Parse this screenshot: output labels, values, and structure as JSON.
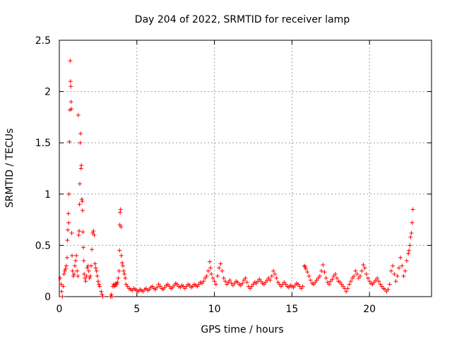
{
  "chart_data": {
    "type": "scatter",
    "title": "Day 204 of 2022, SRMTID for receiver lamp",
    "xlabel": "GPS time / hours",
    "ylabel": "SRMTID / TECUs",
    "xlim": [
      0,
      24
    ],
    "ylim": [
      0,
      2.5
    ],
    "xticks": [
      0,
      5,
      10,
      15,
      20
    ],
    "yticks": [
      0,
      0.5,
      1,
      1.5,
      2,
      2.5
    ],
    "xtick_labels": [
      "0",
      "5",
      "10",
      "15",
      "20"
    ],
    "ytick_labels": [
      "0",
      "0.5",
      "1",
      "1.5",
      "2",
      "2.5"
    ],
    "grid": true,
    "marker": "+",
    "color": "#ff0000",
    "series": [
      {
        "name": "SRMTID",
        "points": [
          [
            0.05,
            0.18
          ],
          [
            0.12,
            0.12
          ],
          [
            0.15,
            0.05
          ],
          [
            0.2,
            0.0
          ],
          [
            0.25,
            0.1
          ],
          [
            0.3,
            0.22
          ],
          [
            0.35,
            0.25
          ],
          [
            0.4,
            0.27
          ],
          [
            0.45,
            0.3
          ],
          [
            0.5,
            0.38
          ],
          [
            0.52,
            0.55
          ],
          [
            0.55,
            0.65
          ],
          [
            0.58,
            0.81
          ],
          [
            0.6,
            0.72
          ],
          [
            0.62,
            1.0
          ],
          [
            0.65,
            1.51
          ],
          [
            0.68,
            1.82
          ],
          [
            0.7,
            2.3
          ],
          [
            0.72,
            2.1
          ],
          [
            0.74,
            2.05
          ],
          [
            0.76,
            1.9
          ],
          [
            0.78,
            1.83
          ],
          [
            0.8,
            0.62
          ],
          [
            0.82,
            0.4
          ],
          [
            0.85,
            0.25
          ],
          [
            0.9,
            0.2
          ],
          [
            0.95,
            0.22
          ],
          [
            1.0,
            0.3
          ],
          [
            1.05,
            0.35
          ],
          [
            1.1,
            0.4
          ],
          [
            1.15,
            0.25
          ],
          [
            1.2,
            0.2
          ],
          [
            1.22,
            1.77
          ],
          [
            1.25,
            0.6
          ],
          [
            1.28,
            0.64
          ],
          [
            1.3,
            0.9
          ],
          [
            1.32,
            1.1
          ],
          [
            1.35,
            1.5
          ],
          [
            1.37,
            1.59
          ],
          [
            1.4,
            1.25
          ],
          [
            1.42,
            1.28
          ],
          [
            1.45,
            0.95
          ],
          [
            1.48,
            0.93
          ],
          [
            1.5,
            0.84
          ],
          [
            1.52,
            0.63
          ],
          [
            1.55,
            0.48
          ],
          [
            1.58,
            0.35
          ],
          [
            1.6,
            0.22
          ],
          [
            1.65,
            0.18
          ],
          [
            1.7,
            0.15
          ],
          [
            1.75,
            0.2
          ],
          [
            1.8,
            0.28
          ],
          [
            1.85,
            0.3
          ],
          [
            1.9,
            0.25
          ],
          [
            1.95,
            0.18
          ],
          [
            2.0,
            0.2
          ],
          [
            2.05,
            0.3
          ],
          [
            2.1,
            0.46
          ],
          [
            2.15,
            0.62
          ],
          [
            2.2,
            0.64
          ],
          [
            2.25,
            0.6
          ],
          [
            2.3,
            0.32
          ],
          [
            2.35,
            0.28
          ],
          [
            2.4,
            0.25
          ],
          [
            2.45,
            0.2
          ],
          [
            2.5,
            0.15
          ],
          [
            2.55,
            0.12
          ],
          [
            2.6,
            0.1
          ],
          [
            2.7,
            0.05
          ],
          [
            2.75,
            0.02
          ],
          [
            2.8,
            0.0
          ],
          [
            3.3,
            0.0
          ],
          [
            3.35,
            0.02
          ],
          [
            3.4,
            0.0
          ],
          [
            3.45,
            0.1
          ],
          [
            3.5,
            0.12
          ],
          [
            3.55,
            0.1
          ],
          [
            3.6,
            0.11
          ],
          [
            3.65,
            0.13
          ],
          [
            3.7,
            0.12
          ],
          [
            3.75,
            0.14
          ],
          [
            3.8,
            0.18
          ],
          [
            3.85,
            0.25
          ],
          [
            3.88,
            0.45
          ],
          [
            3.9,
            0.7
          ],
          [
            3.92,
            0.82
          ],
          [
            3.95,
            0.85
          ],
          [
            3.98,
            0.68
          ],
          [
            4.0,
            0.4
          ],
          [
            4.05,
            0.33
          ],
          [
            4.1,
            0.3
          ],
          [
            4.15,
            0.25
          ],
          [
            4.2,
            0.22
          ],
          [
            4.25,
            0.18
          ],
          [
            4.3,
            0.12
          ],
          [
            4.4,
            0.1
          ],
          [
            4.5,
            0.08
          ],
          [
            4.6,
            0.07
          ],
          [
            4.7,
            0.06
          ],
          [
            4.8,
            0.08
          ],
          [
            4.9,
            0.07
          ],
          [
            5.0,
            0.06
          ],
          [
            5.1,
            0.05
          ],
          [
            5.2,
            0.07
          ],
          [
            5.3,
            0.06
          ],
          [
            5.4,
            0.05
          ],
          [
            5.5,
            0.07
          ],
          [
            5.6,
            0.08
          ],
          [
            5.7,
            0.06
          ],
          [
            5.8,
            0.07
          ],
          [
            5.9,
            0.09
          ],
          [
            6.0,
            0.1
          ],
          [
            6.1,
            0.08
          ],
          [
            6.2,
            0.07
          ],
          [
            6.3,
            0.09
          ],
          [
            6.4,
            0.12
          ],
          [
            6.5,
            0.1
          ],
          [
            6.6,
            0.08
          ],
          [
            6.7,
            0.07
          ],
          [
            6.8,
            0.09
          ],
          [
            6.9,
            0.11
          ],
          [
            7.0,
            0.12
          ],
          [
            7.1,
            0.1
          ],
          [
            7.2,
            0.08
          ],
          [
            7.3,
            0.09
          ],
          [
            7.4,
            0.11
          ],
          [
            7.5,
            0.13
          ],
          [
            7.6,
            0.12
          ],
          [
            7.7,
            0.1
          ],
          [
            7.8,
            0.09
          ],
          [
            7.9,
            0.11
          ],
          [
            8.0,
            0.1
          ],
          [
            8.1,
            0.08
          ],
          [
            8.2,
            0.1
          ],
          [
            8.3,
            0.12
          ],
          [
            8.4,
            0.11
          ],
          [
            8.5,
            0.09
          ],
          [
            8.6,
            0.1
          ],
          [
            8.7,
            0.12
          ],
          [
            8.8,
            0.11
          ],
          [
            8.9,
            0.1
          ],
          [
            9.0,
            0.12
          ],
          [
            9.1,
            0.14
          ],
          [
            9.2,
            0.13
          ],
          [
            9.3,
            0.15
          ],
          [
            9.4,
            0.18
          ],
          [
            9.5,
            0.2
          ],
          [
            9.6,
            0.25
          ],
          [
            9.7,
            0.34
          ],
          [
            9.75,
            0.28
          ],
          [
            9.8,
            0.22
          ],
          [
            9.9,
            0.18
          ],
          [
            10.0,
            0.15
          ],
          [
            10.1,
            0.12
          ],
          [
            10.2,
            0.2
          ],
          [
            10.3,
            0.28
          ],
          [
            10.4,
            0.32
          ],
          [
            10.5,
            0.25
          ],
          [
            10.6,
            0.18
          ],
          [
            10.7,
            0.15
          ],
          [
            10.8,
            0.12
          ],
          [
            10.9,
            0.14
          ],
          [
            11.0,
            0.16
          ],
          [
            11.1,
            0.13
          ],
          [
            11.2,
            0.11
          ],
          [
            11.3,
            0.13
          ],
          [
            11.4,
            0.15
          ],
          [
            11.5,
            0.14
          ],
          [
            11.6,
            0.12
          ],
          [
            11.7,
            0.11
          ],
          [
            11.8,
            0.13
          ],
          [
            11.9,
            0.16
          ],
          [
            12.0,
            0.18
          ],
          [
            12.1,
            0.14
          ],
          [
            12.2,
            0.1
          ],
          [
            12.3,
            0.08
          ],
          [
            12.4,
            0.1
          ],
          [
            12.5,
            0.12
          ],
          [
            12.6,
            0.14
          ],
          [
            12.7,
            0.13
          ],
          [
            12.8,
            0.15
          ],
          [
            12.9,
            0.17
          ],
          [
            13.0,
            0.15
          ],
          [
            13.1,
            0.13
          ],
          [
            13.2,
            0.12
          ],
          [
            13.3,
            0.14
          ],
          [
            13.4,
            0.16
          ],
          [
            13.5,
            0.18
          ],
          [
            13.6,
            0.16
          ],
          [
            13.7,
            0.2
          ],
          [
            13.8,
            0.25
          ],
          [
            13.9,
            0.22
          ],
          [
            14.0,
            0.18
          ],
          [
            14.1,
            0.14
          ],
          [
            14.2,
            0.12
          ],
          [
            14.3,
            0.1
          ],
          [
            14.4,
            0.12
          ],
          [
            14.5,
            0.14
          ],
          [
            14.6,
            0.12
          ],
          [
            14.7,
            0.1
          ],
          [
            14.8,
            0.09
          ],
          [
            14.9,
            0.11
          ],
          [
            15.0,
            0.1
          ],
          [
            15.1,
            0.09
          ],
          [
            15.2,
            0.11
          ],
          [
            15.3,
            0.13
          ],
          [
            15.4,
            0.12
          ],
          [
            15.5,
            0.1
          ],
          [
            15.6,
            0.08
          ],
          [
            15.7,
            0.1
          ],
          [
            15.8,
            0.3
          ],
          [
            15.85,
            0.29
          ],
          [
            15.9,
            0.27
          ],
          [
            16.0,
            0.24
          ],
          [
            16.1,
            0.2
          ],
          [
            16.2,
            0.16
          ],
          [
            16.3,
            0.13
          ],
          [
            16.4,
            0.12
          ],
          [
            16.5,
            0.14
          ],
          [
            16.6,
            0.16
          ],
          [
            16.7,
            0.18
          ],
          [
            16.8,
            0.2
          ],
          [
            16.9,
            0.25
          ],
          [
            17.0,
            0.31
          ],
          [
            17.1,
            0.24
          ],
          [
            17.2,
            0.18
          ],
          [
            17.3,
            0.14
          ],
          [
            17.4,
            0.12
          ],
          [
            17.5,
            0.15
          ],
          [
            17.6,
            0.17
          ],
          [
            17.7,
            0.2
          ],
          [
            17.8,
            0.22
          ],
          [
            17.9,
            0.18
          ],
          [
            18.0,
            0.15
          ],
          [
            18.1,
            0.14
          ],
          [
            18.2,
            0.12
          ],
          [
            18.3,
            0.1
          ],
          [
            18.4,
            0.08
          ],
          [
            18.5,
            0.05
          ],
          [
            18.6,
            0.08
          ],
          [
            18.7,
            0.12
          ],
          [
            18.8,
            0.15
          ],
          [
            18.9,
            0.18
          ],
          [
            19.0,
            0.2
          ],
          [
            19.1,
            0.25
          ],
          [
            19.2,
            0.22
          ],
          [
            19.3,
            0.18
          ],
          [
            19.4,
            0.2
          ],
          [
            19.5,
            0.25
          ],
          [
            19.6,
            0.31
          ],
          [
            19.7,
            0.28
          ],
          [
            19.8,
            0.22
          ],
          [
            19.9,
            0.18
          ],
          [
            20.0,
            0.15
          ],
          [
            20.1,
            0.13
          ],
          [
            20.2,
            0.12
          ],
          [
            20.3,
            0.14
          ],
          [
            20.4,
            0.16
          ],
          [
            20.5,
            0.18
          ],
          [
            20.6,
            0.15
          ],
          [
            20.7,
            0.12
          ],
          [
            20.8,
            0.1
          ],
          [
            20.9,
            0.08
          ],
          [
            21.0,
            0.07
          ],
          [
            21.1,
            0.05
          ],
          [
            21.2,
            0.07
          ],
          [
            21.3,
            0.12
          ],
          [
            21.4,
            0.25
          ],
          [
            21.5,
            0.3
          ],
          [
            21.6,
            0.22
          ],
          [
            21.7,
            0.15
          ],
          [
            21.8,
            0.2
          ],
          [
            21.9,
            0.28
          ],
          [
            22.0,
            0.38
          ],
          [
            22.1,
            0.3
          ],
          [
            22.2,
            0.2
          ],
          [
            22.3,
            0.25
          ],
          [
            22.4,
            0.35
          ],
          [
            22.5,
            0.42
          ],
          [
            22.55,
            0.45
          ],
          [
            22.6,
            0.5
          ],
          [
            22.65,
            0.58
          ],
          [
            22.7,
            0.62
          ],
          [
            22.75,
            0.72
          ],
          [
            22.8,
            0.85
          ]
        ]
      }
    ]
  }
}
